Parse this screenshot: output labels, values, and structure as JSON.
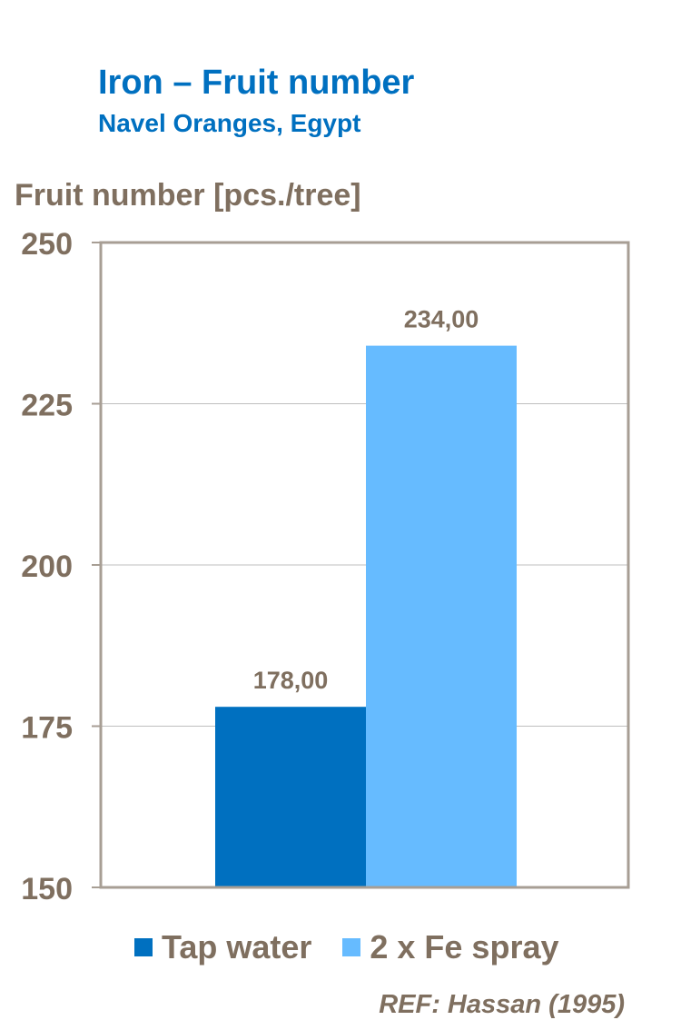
{
  "colors": {
    "title": "#0070C0",
    "text": "#7F6F5F",
    "frame": "#A79E94",
    "grid": "#BFBFBF"
  },
  "reference": "REF: Hassan (1995)",
  "chart_data": {
    "type": "bar",
    "title": "Iron – Fruit number",
    "subtitle": "Navel Oranges, Egypt",
    "ylabel": "Fruit number [pcs./tree]",
    "xlabel": "",
    "ylim": [
      150,
      250
    ],
    "yticks": [
      150,
      175,
      200,
      225,
      250
    ],
    "grid": true,
    "legend_position": "bottom",
    "series": [
      {
        "name": "Tap water",
        "value": 178,
        "label": "178,00",
        "color": "#0070C0"
      },
      {
        "name": "2 x Fe spray",
        "value": 234,
        "label": "234,00",
        "color": "#66BBFF"
      }
    ]
  }
}
